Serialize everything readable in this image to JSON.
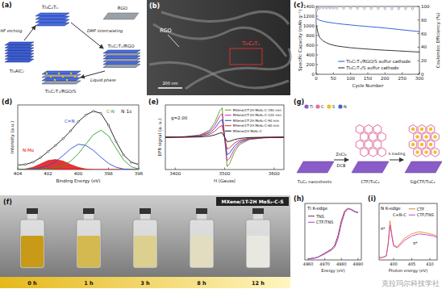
{
  "chart_data": [
    {
      "type": "line",
      "x_label": "Cycle Number",
      "y_label": "Specific Capacity (mAh g⁻¹)",
      "y2_label": "Coulombic Efficiency (%)",
      "x": [
        1,
        5,
        10,
        20,
        30,
        40,
        50,
        60,
        80,
        100,
        120,
        140,
        160,
        180,
        200,
        220,
        240,
        260,
        280,
        300
      ],
      "xlim": [
        0,
        300
      ],
      "xticks": [
        0,
        50,
        100,
        150,
        200,
        250,
        300
      ],
      "ylim": [
        0,
        1400
      ],
      "yticks": [
        0,
        200,
        400,
        600,
        800,
        1000,
        1200,
        1400
      ],
      "y2lim": [
        0,
        100
      ],
      "y2ticks": [
        0,
        20,
        40,
        60,
        80,
        100
      ],
      "legend": "lower right",
      "series": [
        {
          "name": "Ti₃C₂Tₓ/RGO/S sulfur cathode",
          "color": "#1f4fd6",
          "values": [
            1160,
            1135,
            1115,
            1095,
            1080,
            1068,
            1058,
            1048,
            1032,
            1018,
            1004,
            992,
            980,
            968,
            955,
            940,
            925,
            910,
            895,
            880
          ]
        },
        {
          "name": "Ti₃C₂Tₓ/S sulfur cathode",
          "color": "#222222",
          "values": [
            1000,
            860,
            760,
            690,
            650,
            620,
            600,
            585,
            565,
            548,
            535,
            525,
            515,
            505,
            497,
            490,
            482,
            474,
            466,
            458
          ]
        },
        {
          "type": "scatter",
          "axis": "y2",
          "color": "#6f86d6",
          "marker": "circle",
          "values": [
            96,
            98.5,
            99,
            99,
            99,
            98.8,
            99,
            98.9,
            99,
            98.8,
            98.7,
            98.8,
            98.6,
            98.7,
            98.5,
            98.6,
            98.4,
            98.5,
            98.3,
            98.4
          ]
        },
        {
          "type": "scatter",
          "axis": "y2",
          "color": "#777777",
          "marker": "circle",
          "values": [
            94,
            97,
            97.5,
            97.8,
            97.6,
            97.5,
            97.4,
            97.3,
            97.2,
            97,
            97.1,
            96.9,
            96.8,
            96.9,
            96.7,
            96.6,
            96.7,
            96.5,
            96.4,
            96.5
          ]
        }
      ]
    },
    {
      "type": "line",
      "title": "N 1s",
      "x_label": "Binding Energy (eV)",
      "y_label": "Intensity (a.u.)",
      "x": [
        404,
        403.5,
        403,
        402.5,
        402,
        401.5,
        401,
        400.5,
        400,
        399.5,
        399,
        398.5,
        398,
        397.5,
        397,
        396.5,
        396
      ],
      "xlim": [
        404,
        396
      ],
      "xticks": [
        404,
        402,
        400,
        398,
        396
      ],
      "ylim": [
        0,
        115
      ],
      "tick_labels": "x",
      "annotations": [
        "N-Mo",
        "C=N",
        "C-N"
      ],
      "series": [
        {
          "type": "area",
          "color": "#e01010",
          "values": [
            0,
            1,
            4,
            10,
            16,
            18,
            15,
            9,
            4,
            1,
            0,
            0,
            0,
            0,
            0,
            0,
            0
          ]
        },
        {
          "color": "#2a4bd8",
          "values": [
            0,
            0,
            1,
            3,
            7,
            14,
            25,
            37,
            45,
            43,
            34,
            22,
            11,
            4,
            1,
            0,
            0
          ]
        },
        {
          "color": "#2aa02a",
          "values": [
            0,
            0,
            0,
            0,
            1,
            3,
            7,
            15,
            28,
            45,
            62,
            70,
            60,
            38,
            17,
            5,
            1
          ]
        },
        {
          "color": "#111111",
          "marker": "circle",
          "values": [
            8,
            9,
            13,
            21,
            32,
            43,
            55,
            69,
            85,
            97,
            104,
            100,
            79,
            50,
            26,
            13,
            9
          ]
        }
      ]
    },
    {
      "type": "line",
      "x_label": "H (Gauss)",
      "y_label": "EPR signal (a. u.)",
      "x": [
        3380,
        3420,
        3450,
        3470,
        3480,
        3490,
        3495,
        3500,
        3505,
        3510,
        3520,
        3530,
        3550,
        3580,
        3620
      ],
      "xlim": [
        3380,
        3620
      ],
      "xticks": [
        3400,
        3500,
        3600
      ],
      "ylim": [
        -110,
        110
      ],
      "tick_labels": "x",
      "legend": "upper right",
      "annotations": [
        "g=2.00"
      ],
      "series": [
        {
          "name": "MXene/1T-2H MoS₂-C-150 min",
          "color": "#5a9a1a",
          "values": [
            0,
            2,
            8,
            25,
            50,
            90,
            100,
            0,
            -100,
            -90,
            -50,
            -25,
            -8,
            -2,
            0
          ]
        },
        {
          "name": "MXene/1T-2H MoS₂-C-120 min",
          "color": "#d020b0",
          "values": [
            0,
            2,
            6,
            20,
            40,
            72,
            80,
            0,
            -80,
            -72,
            -40,
            -20,
            -6,
            -2,
            0
          ]
        },
        {
          "name": "MXene/1T-2H MoS₂-C-90 min",
          "color": "#2040d0",
          "values": [
            0,
            1,
            5,
            15,
            30,
            54,
            60,
            0,
            -60,
            -54,
            -30,
            -15,
            -5,
            -1,
            0
          ]
        },
        {
          "name": "MXene/1T-2H MoS₂-C-60 min",
          "color": "#e02020",
          "values": [
            0,
            1,
            3,
            10,
            20,
            36,
            40,
            0,
            -40,
            -36,
            -20,
            -10,
            -3,
            -1,
            0
          ]
        },
        {
          "name": "MXene/2H MoS₂-C",
          "color": "#111111",
          "values": [
            0,
            0,
            1,
            4,
            8,
            14,
            15,
            0,
            -15,
            -14,
            -8,
            -4,
            -1,
            0,
            0
          ]
        }
      ]
    },
    {
      "type": "line",
      "title": "Ti K-edge",
      "x_label": "Energy (eV)",
      "x": [
        4960,
        4964,
        4966,
        4968,
        4970,
        4972,
        4974,
        4976,
        4978,
        4980,
        4982,
        4984,
        4986,
        4988,
        4990
      ],
      "xlim": [
        4958,
        4992
      ],
      "xticks": [
        4960,
        4970,
        4980,
        4990
      ],
      "ylim": [
        0,
        115
      ],
      "tick_labels": "x",
      "legend": "upper left",
      "series": [
        {
          "name": "TNS",
          "color": "#8b1a3a",
          "values": [
            2,
            4,
            6,
            10,
            14,
            18,
            22,
            30,
            50,
            80,
            100,
            105,
            102,
            98,
            96
          ]
        },
        {
          "name": "CTF/TNS",
          "color": "#a040c0",
          "values": [
            2,
            4,
            6,
            9,
            12,
            16,
            20,
            26,
            44,
            74,
            96,
            104,
            103,
            99,
            97
          ]
        }
      ]
    },
    {
      "type": "line",
      "title": "N K-edge",
      "x_label": "Photon energy (eV)",
      "x": [
        396,
        397,
        398,
        398.5,
        399,
        399.5,
        400,
        401,
        402,
        403,
        405,
        407,
        409,
        411,
        412
      ],
      "xlim": [
        396,
        412
      ],
      "xticks": [
        400,
        405,
        410
      ],
      "ylim": [
        0,
        130
      ],
      "tick_labels": "x",
      "legend": "upper right",
      "annotations": [
        "C=N-C",
        "π*",
        "σ*"
      ],
      "series": [
        {
          "name": "CTF",
          "color": "#f08020",
          "values": [
            5,
            6,
            10,
            40,
            90,
            60,
            35,
            30,
            40,
            50,
            60,
            65,
            62,
            58,
            55
          ]
        },
        {
          "name": "CTF/TNS",
          "color": "#c040c0",
          "values": [
            5,
            6,
            9,
            35,
            80,
            55,
            32,
            28,
            36,
            45,
            55,
            60,
            58,
            55,
            52
          ]
        }
      ]
    }
  ],
  "figure": {
    "panel_labels": [
      "(a)",
      "(b)",
      "(c)",
      "(d)",
      "(e)",
      "(f)",
      "(g)",
      "(h)",
      "(i)"
    ],
    "a": {
      "labels": [
        "Ti₃C₂Tₓ",
        "Ti₃AlC₂",
        "HF etching",
        "RGO",
        "DMF intercalating",
        "Ti₃C₂Tₓ/RGO",
        "Ti₃C₂Tₓ/RGO/S",
        "Liquid phase"
      ]
    },
    "b": {
      "labels": [
        "RGO",
        "Ti₃C₂Tₓ"
      ],
      "scale_bar": "200 nm"
    },
    "f": {
      "times": [
        "0 h",
        "1 h",
        "3 h",
        "8 h",
        "12 h"
      ],
      "label": "MXene/1T-2H MoS₂-C-S"
    },
    "g": {
      "atoms": [
        "Ti",
        "C",
        "S",
        "N"
      ],
      "stages": [
        "Ti₃C₂ nanosheets",
        "CTF/Ti₃C₂",
        "S@CTF/Ti₃C₂"
      ],
      "steps": [
        "ZnCl₂",
        "DCB",
        "S loading"
      ]
    },
    "watermark": "克拉玛尔科技学社"
  }
}
